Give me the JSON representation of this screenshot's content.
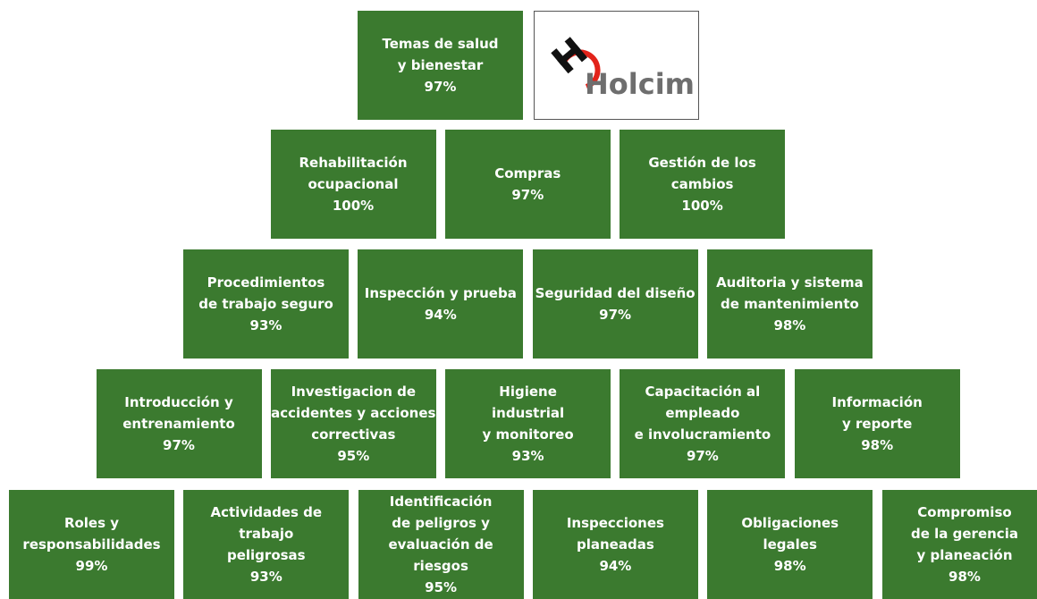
{
  "logo": {
    "text": "Holcim"
  },
  "rows": [
    [
      {
        "lines": [
          "Temas de salud",
          "y bienestar"
        ],
        "value": "97%"
      }
    ],
    [
      {
        "lines": [
          "Rehabilitación",
          "ocupacional"
        ],
        "value": "100%"
      },
      {
        "lines": [
          "Compras"
        ],
        "value": "97%"
      },
      {
        "lines": [
          "Gestión de los",
          "cambios"
        ],
        "value": "100%"
      }
    ],
    [
      {
        "lines": [
          "Procedimientos",
          "de trabajo seguro"
        ],
        "value": "93%"
      },
      {
        "lines": [
          "Inspección y prueba"
        ],
        "value": "94%"
      },
      {
        "lines": [
          "Seguridad del diseño"
        ],
        "value": "97%"
      },
      {
        "lines": [
          "Auditoria y sistema",
          "de mantenimiento"
        ],
        "value": "98%"
      }
    ],
    [
      {
        "lines": [
          "Introducción y",
          "entrenamiento"
        ],
        "value": "97%"
      },
      {
        "lines": [
          "Investigacion de",
          "accidentes y acciones",
          "correctivas"
        ],
        "value": "95%"
      },
      {
        "lines": [
          "Higiene",
          "industrial",
          "y monitoreo"
        ],
        "value": "93%"
      },
      {
        "lines": [
          "Capacitación al",
          "empleado",
          "e involucramiento"
        ],
        "value": "97%"
      },
      {
        "lines": [
          "Información",
          "y reporte"
        ],
        "value": "98%"
      }
    ],
    [
      {
        "lines": [
          "Roles y",
          "responsabilidades"
        ],
        "value": "99%"
      },
      {
        "lines": [
          "Actividades de",
          "trabajo",
          "peligrosas"
        ],
        "value": "93%"
      },
      {
        "lines": [
          "Identificación",
          "de peligros y",
          "evaluación de",
          "riesgos"
        ],
        "value": "95%"
      },
      {
        "lines": [
          "Inspecciones",
          "planeadas"
        ],
        "value": "94%"
      },
      {
        "lines": [
          "Obligaciones",
          "legales"
        ],
        "value": "98%"
      },
      {
        "lines": [
          "Compromiso",
          "de la gerencia",
          "y planeación"
        ],
        "value": "98%"
      }
    ]
  ]
}
